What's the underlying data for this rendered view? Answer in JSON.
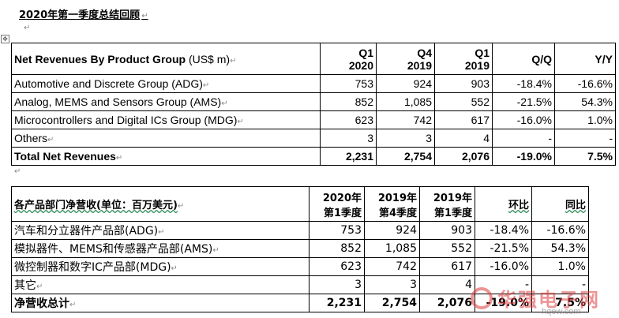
{
  "heading": "2020年第一季度总结回顾",
  "marks": {
    "return": "↵",
    "anchor": "✥"
  },
  "table_en": {
    "header": {
      "label": "Net Revenues By Product Group",
      "unit": "(US$ m)",
      "cols": [
        {
          "line1": "Q1",
          "line2": "2020"
        },
        {
          "line1": "Q4",
          "line2": "2019"
        },
        {
          "line1": "Q1",
          "line2": "2019"
        },
        {
          "line1": "Q/Q",
          "line2": ""
        },
        {
          "line1": "Y/Y",
          "line2": ""
        }
      ]
    },
    "rows": [
      {
        "label": "Automotive and Discrete Group (ADG)",
        "v": [
          "753",
          "924",
          "903",
          "-18.4%",
          "-16.6%"
        ]
      },
      {
        "label": "Analog, MEMS and Sensors Group (AMS)",
        "v": [
          "852",
          "1,085",
          "552",
          "-21.5%",
          "54.3%"
        ]
      },
      {
        "label": "Microcontrollers and Digital ICs Group (MDG)",
        "v": [
          "623",
          "742",
          "617",
          "-16.0%",
          "1.0%"
        ]
      },
      {
        "label": "Others",
        "v": [
          "3",
          "3",
          "4",
          "-",
          "-"
        ]
      }
    ],
    "total": {
      "label": "Total Net Revenues",
      "v": [
        "2,231",
        "2,754",
        "2,076",
        "-19.0%",
        "7.5%"
      ]
    }
  },
  "table_zh": {
    "header": {
      "label": "各产品部门净营收(单位：百万美元)",
      "cols": [
        {
          "line1": "2020年",
          "line2": "第1季度"
        },
        {
          "line1": "2019年",
          "line2": "第4季度"
        },
        {
          "line1": "2019年",
          "line2": "第1季度"
        },
        {
          "line1": "环比",
          "line2": ""
        },
        {
          "line1": "同比",
          "line2": ""
        }
      ]
    },
    "rows": [
      {
        "label": "汽车和分立器件产品部(ADG)",
        "v": [
          "753",
          "924",
          "903",
          "-18.4%",
          "-16.6%"
        ]
      },
      {
        "label": "模拟器件、MEMS和传感器产品部(AMS)",
        "v": [
          "852",
          "1,085",
          "552",
          "-21.5%",
          "54.3%"
        ]
      },
      {
        "label": "微控制器和数字IC产品部(MDG)",
        "v": [
          "623",
          "742",
          "617",
          "-16.0%",
          "1.0%"
        ]
      },
      {
        "label": "其它",
        "v": [
          "3",
          "3",
          "4",
          "-",
          "-"
        ]
      }
    ],
    "total": {
      "label": "净营收总计",
      "v": [
        "2,231",
        "2,754",
        "2,076",
        "-19.0%",
        "7.5%"
      ]
    }
  },
  "watermark": {
    "name": "华强电子网",
    "domain": "hqew.com",
    "color": "#dc3c3c"
  }
}
